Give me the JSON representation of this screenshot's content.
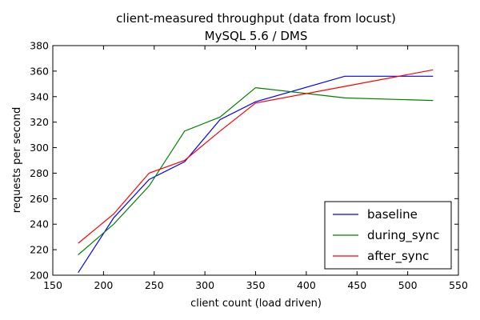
{
  "chart_data": {
    "type": "line",
    "title": "client-measured throughput (data from locust)",
    "subtitle": "MySQL 5.6 / DMS",
    "xlabel": "client count (load driven)",
    "ylabel": "requests per second",
    "xlim": [
      150,
      550
    ],
    "ylim": [
      200,
      380
    ],
    "xticks": [
      150,
      200,
      250,
      300,
      350,
      400,
      450,
      500,
      550
    ],
    "yticks": [
      200,
      220,
      240,
      260,
      280,
      300,
      320,
      340,
      360,
      380
    ],
    "grid": false,
    "legend_position": "bottom-right",
    "x": [
      175,
      210,
      245,
      280,
      315,
      350,
      438,
      525
    ],
    "series": [
      {
        "name": "baseline",
        "color": "#0000ff",
        "values": [
          202,
          245,
          275,
          289,
          322,
          336,
          356,
          356
        ]
      },
      {
        "name": "during_sync",
        "color": "#008000",
        "values": [
          216,
          240,
          270,
          313,
          324,
          347,
          339,
          337
        ]
      },
      {
        "name": "after_sync",
        "color": "#ff0000",
        "values": [
          225,
          248,
          280,
          290,
          313,
          335,
          348,
          361
        ]
      }
    ]
  }
}
